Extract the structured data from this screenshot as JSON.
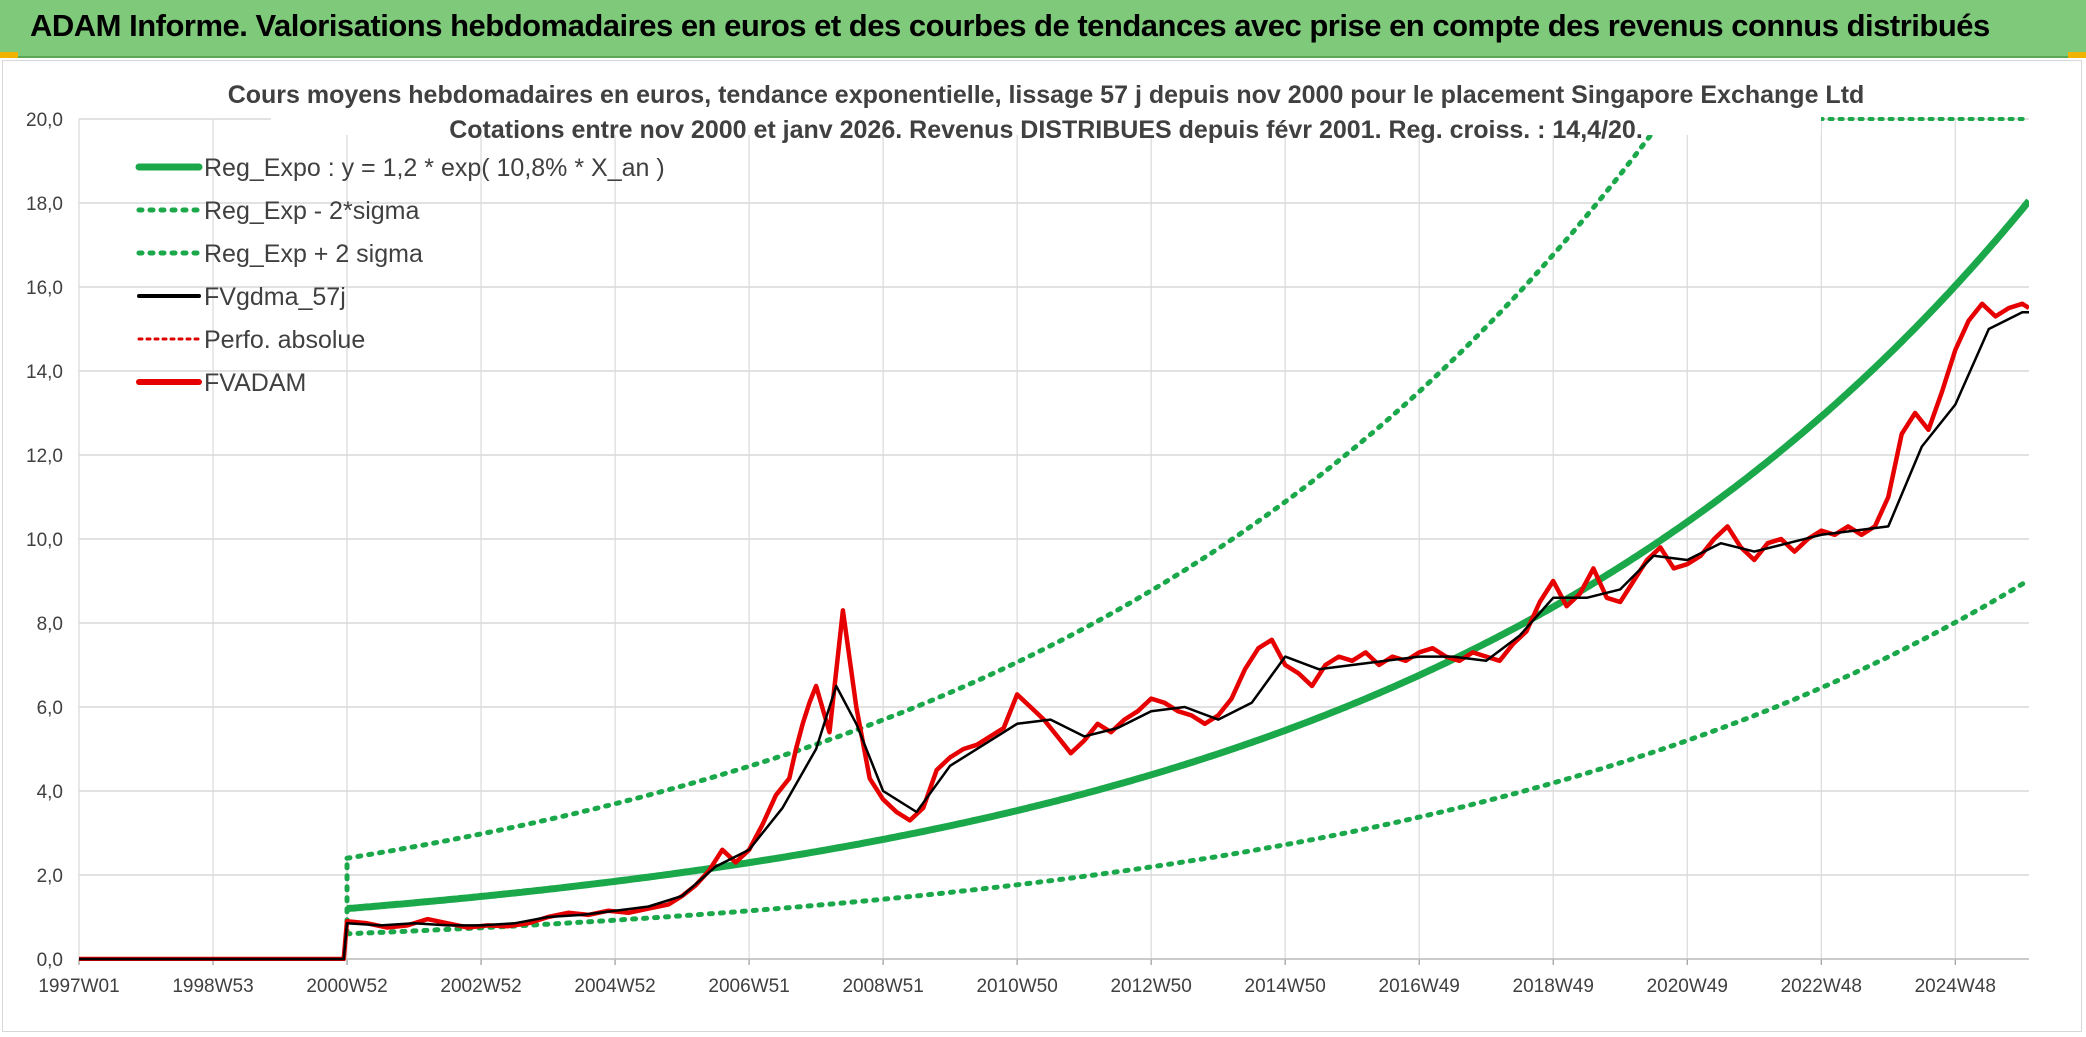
{
  "banner": {
    "title": "ADAM Informe. Valorisations hebdomadaires en euros et des courbes de tendances avec prise en compte des revenus connus distribués"
  },
  "colors": {
    "banner_bg": "#7fc97b",
    "reg_expo": "#1aa84a",
    "sigma": "#1aa84a",
    "fvgdma": "#000000",
    "perfo": "#e00000",
    "fvadam": "#e60000",
    "grid": "#d9d9d9",
    "text": "#404040"
  },
  "chart_data": {
    "type": "line",
    "title_lines": [
      "Cours moyens hebdomadaires en euros, tendance exponentielle, lissage 57 j depuis nov 2000 pour le placement Singapore Exchange Ltd",
      "Cotations entre nov 2000 et janv 2026. Revenus DISTRIBUES depuis févr 2001. Reg. croiss. : 14,4/20."
    ],
    "xlabel": "",
    "ylabel": "",
    "ylim": [
      0,
      20
    ],
    "xlim": [
      1997.0,
      2026.1
    ],
    "y_ticks": [
      "0,0",
      "2,0",
      "4,0",
      "6,0",
      "8,0",
      "10,0",
      "12,0",
      "14,0",
      "16,0",
      "18,0",
      "20,0"
    ],
    "x_ticks": [
      {
        "label": "1997W01",
        "x": 1997.0
      },
      {
        "label": "1998W53",
        "x": 1999.0
      },
      {
        "label": "2000W52",
        "x": 2001.0
      },
      {
        "label": "2002W52",
        "x": 2003.0
      },
      {
        "label": "2004W52",
        "x": 2005.0
      },
      {
        "label": "2006W51",
        "x": 2007.0
      },
      {
        "label": "2008W51",
        "x": 2009.0
      },
      {
        "label": "2010W50",
        "x": 2011.0
      },
      {
        "label": "2012W50",
        "x": 2013.0
      },
      {
        "label": "2014W50",
        "x": 2015.0
      },
      {
        "label": "2016W49",
        "x": 2017.0
      },
      {
        "label": "2018W49",
        "x": 2019.0
      },
      {
        "label": "2020W49",
        "x": 2021.0
      },
      {
        "label": "2022W48",
        "x": 2023.0
      },
      {
        "label": "2024W48",
        "x": 2025.0
      }
    ],
    "legend": [
      {
        "key": "reg_expo",
        "label": "Reg_Expo : y = 1,2 * exp( 10,8% *  X_an )",
        "style": "solid-thick"
      },
      {
        "key": "sigma_minus",
        "label": "Reg_Exp - 2*sigma",
        "style": "dotted"
      },
      {
        "key": "sigma_plus",
        "label": "Reg_Exp + 2 sigma",
        "style": "dotted"
      },
      {
        "key": "fvgdma",
        "label": "FVgdma_57j",
        "style": "solid"
      },
      {
        "key": "perfo",
        "label": "Perfo. absolue",
        "style": "dotted-red"
      },
      {
        "key": "fvadam",
        "label": "FVADAM",
        "style": "solid-red"
      }
    ],
    "regression": {
      "a": 1.2,
      "rate": 0.108,
      "start": 2001.0,
      "end": 2026.1,
      "sigma_factor": 2.0
    },
    "series": [
      {
        "name": "FVADAM",
        "x": [
          1997.0,
          2000.95,
          2001.0,
          2001.3,
          2001.6,
          2001.9,
          2002.2,
          2002.5,
          2002.8,
          2003.1,
          2003.4,
          2003.7,
          2004.0,
          2004.3,
          2004.6,
          2004.9,
          2005.2,
          2005.5,
          2005.8,
          2006.0,
          2006.2,
          2006.4,
          2006.6,
          2006.8,
          2007.0,
          2007.2,
          2007.4,
          2007.6,
          2007.7,
          2007.8,
          2007.9,
          2008.0,
          2008.2,
          2008.4,
          2008.6,
          2008.8,
          2009.0,
          2009.2,
          2009.4,
          2009.6,
          2009.8,
          2010.0,
          2010.2,
          2010.4,
          2010.6,
          2010.8,
          2011.0,
          2011.2,
          2011.4,
          2011.6,
          2011.8,
          2012.0,
          2012.2,
          2012.4,
          2012.6,
          2012.8,
          2013.0,
          2013.2,
          2013.4,
          2013.6,
          2013.8,
          2014.0,
          2014.2,
          2014.4,
          2014.6,
          2014.8,
          2015.0,
          2015.2,
          2015.4,
          2015.6,
          2015.8,
          2016.0,
          2016.2,
          2016.4,
          2016.6,
          2016.8,
          2017.0,
          2017.2,
          2017.4,
          2017.6,
          2017.8,
          2018.0,
          2018.2,
          2018.4,
          2018.6,
          2018.8,
          2019.0,
          2019.2,
          2019.4,
          2019.6,
          2019.8,
          2020.0,
          2020.2,
          2020.4,
          2020.6,
          2020.8,
          2021.0,
          2021.2,
          2021.4,
          2021.6,
          2021.8,
          2022.0,
          2022.2,
          2022.4,
          2022.6,
          2022.8,
          2023.0,
          2023.2,
          2023.4,
          2023.6,
          2023.8,
          2024.0,
          2024.2,
          2024.4,
          2024.6,
          2024.8,
          2025.0,
          2025.2,
          2025.4,
          2025.6,
          2025.8,
          2026.0,
          2026.1
        ],
        "y": [
          0.0,
          0.0,
          0.9,
          0.85,
          0.75,
          0.8,
          0.95,
          0.85,
          0.75,
          0.8,
          0.78,
          0.85,
          1.0,
          1.1,
          1.05,
          1.15,
          1.1,
          1.2,
          1.3,
          1.5,
          1.75,
          2.1,
          2.6,
          2.3,
          2.6,
          3.2,
          3.9,
          4.3,
          5.0,
          5.6,
          6.1,
          6.5,
          5.4,
          8.3,
          6.0,
          4.3,
          3.8,
          3.5,
          3.3,
          3.6,
          4.5,
          4.8,
          5.0,
          5.1,
          5.3,
          5.5,
          6.3,
          6.0,
          5.7,
          5.3,
          4.9,
          5.2,
          5.6,
          5.4,
          5.7,
          5.9,
          6.2,
          6.1,
          5.9,
          5.8,
          5.6,
          5.8,
          6.2,
          6.9,
          7.4,
          7.6,
          7.0,
          6.8,
          6.5,
          7.0,
          7.2,
          7.1,
          7.3,
          7.0,
          7.2,
          7.1,
          7.3,
          7.4,
          7.2,
          7.1,
          7.3,
          7.2,
          7.1,
          7.5,
          7.8,
          8.5,
          9.0,
          8.4,
          8.7,
          9.3,
          8.6,
          8.5,
          9.0,
          9.5,
          9.8,
          9.3,
          9.4,
          9.6,
          10.0,
          10.3,
          9.8,
          9.5,
          9.9,
          10.0,
          9.7,
          10.0,
          10.2,
          10.1,
          10.3,
          10.1,
          10.3,
          11.0,
          12.5,
          13.0,
          12.6,
          13.5,
          14.5,
          15.2,
          15.6,
          15.3,
          15.5,
          15.6,
          15.5
        ]
      },
      {
        "name": "FVgdma_57j",
        "x": [
          1997.0,
          2000.95,
          2001.0,
          2001.5,
          2002.0,
          2002.5,
          2003.0,
          2003.5,
          2004.0,
          2004.5,
          2005.0,
          2005.5,
          2006.0,
          2006.5,
          2007.0,
          2007.5,
          2008.0,
          2008.3,
          2008.6,
          2009.0,
          2009.5,
          2010.0,
          2010.5,
          2011.0,
          2011.5,
          2012.0,
          2012.5,
          2013.0,
          2013.5,
          2014.0,
          2014.5,
          2015.0,
          2015.5,
          2016.0,
          2016.5,
          2017.0,
          2017.5,
          2018.0,
          2018.5,
          2019.0,
          2019.5,
          2020.0,
          2020.5,
          2021.0,
          2021.5,
          2022.0,
          2022.5,
          2023.0,
          2023.5,
          2024.0,
          2024.5,
          2025.0,
          2025.5,
          2026.0,
          2026.1
        ],
        "y": [
          0.0,
          0.0,
          0.85,
          0.8,
          0.85,
          0.8,
          0.8,
          0.85,
          1.0,
          1.05,
          1.15,
          1.25,
          1.5,
          2.2,
          2.6,
          3.6,
          5.0,
          6.5,
          5.6,
          4.0,
          3.5,
          4.6,
          5.1,
          5.6,
          5.7,
          5.3,
          5.5,
          5.9,
          6.0,
          5.7,
          6.1,
          7.2,
          6.9,
          7.0,
          7.1,
          7.2,
          7.2,
          7.1,
          7.7,
          8.6,
          8.6,
          8.8,
          9.6,
          9.5,
          9.9,
          9.7,
          9.9,
          10.1,
          10.2,
          10.3,
          12.2,
          13.2,
          15.0,
          15.4,
          15.4
        ]
      }
    ]
  }
}
